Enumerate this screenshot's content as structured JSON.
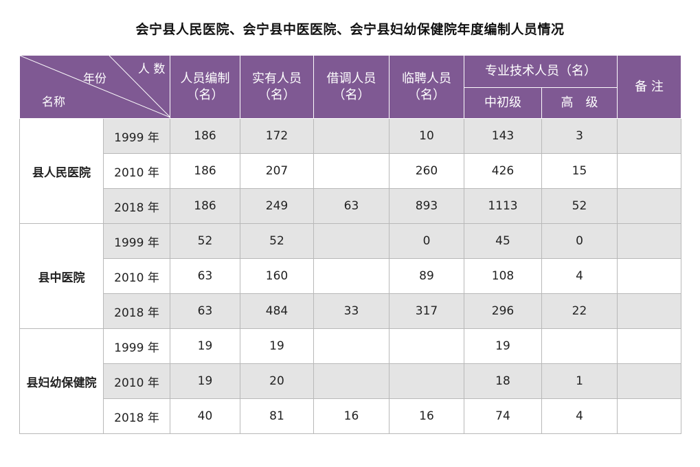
{
  "title": "会宁县人民医院、会宁县中医医院、会宁县妇幼保健院年度编制人员情况",
  "header": {
    "corner_count": "人 数",
    "corner_year": "年份",
    "corner_name": "名称",
    "establishment": [
      "人员编制",
      "（名）"
    ],
    "actual": [
      "实有人员",
      "（名）"
    ],
    "seconded": [
      "借调人员",
      "（名）"
    ],
    "temporary": [
      "临聘人员",
      "（名）"
    ],
    "professional": "专业技术人员（名）",
    "junior": "中初级",
    "senior": "高　级",
    "remarks": "备 注"
  },
  "hospitals": [
    {
      "name": "县人民医院",
      "rows": [
        {
          "year": "1999 年",
          "establishment": "186",
          "actual": "172",
          "seconded": "",
          "temporary": "10",
          "junior": "143",
          "senior": "3",
          "remarks": ""
        },
        {
          "year": "2010 年",
          "establishment": "186",
          "actual": "207",
          "seconded": "",
          "temporary": "260",
          "junior": "426",
          "senior": "15",
          "remarks": ""
        },
        {
          "year": "2018 年",
          "establishment": "186",
          "actual": "249",
          "seconded": "63",
          "temporary": "893",
          "junior": "1113",
          "senior": "52",
          "remarks": ""
        }
      ]
    },
    {
      "name": "县中医院",
      "rows": [
        {
          "year": "1999 年",
          "establishment": "52",
          "actual": "52",
          "seconded": "",
          "temporary": "0",
          "junior": "45",
          "senior": "0",
          "remarks": ""
        },
        {
          "year": "2010 年",
          "establishment": "63",
          "actual": "160",
          "seconded": "",
          "temporary": "89",
          "junior": "108",
          "senior": "4",
          "remarks": ""
        },
        {
          "year": "2018 年",
          "establishment": "63",
          "actual": "484",
          "seconded": "33",
          "temporary": "317",
          "junior": "296",
          "senior": "22",
          "remarks": ""
        }
      ]
    },
    {
      "name": "县妇幼保健院",
      "rows": [
        {
          "year": "1999 年",
          "establishment": "19",
          "actual": "19",
          "seconded": "",
          "temporary": "",
          "junior": "19",
          "senior": "",
          "remarks": ""
        },
        {
          "year": "2010 年",
          "establishment": "19",
          "actual": "20",
          "seconded": "",
          "temporary": "",
          "junior": "18",
          "senior": "1",
          "remarks": ""
        },
        {
          "year": "2018 年",
          "establishment": "40",
          "actual": "81",
          "seconded": "16",
          "temporary": "16",
          "junior": "74",
          "senior": "4",
          "remarks": ""
        }
      ]
    }
  ],
  "row_shading": [
    "gray",
    "white",
    "gray",
    "gray",
    "white",
    "gray",
    "white",
    "gray",
    "white"
  ],
  "colors": {
    "header_bg": "#7f5993",
    "row_gray": "#e4e4e4",
    "border": "#b8b8b8"
  }
}
